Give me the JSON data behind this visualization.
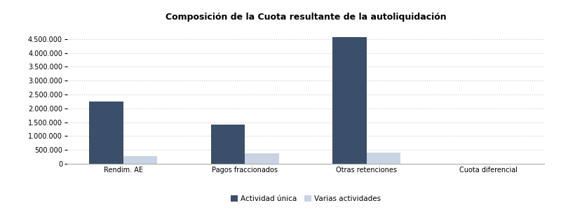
{
  "title": "Composición de la Cuota resultante de la autoliquidación",
  "categories": [
    "Rendim. AE",
    "Pagos fraccionados",
    "Otras retenciones",
    "Cuota diferencial"
  ],
  "actividad_unica": [
    2250000,
    1420000,
    4580000,
    0
  ],
  "varias_actividades": [
    290000,
    370000,
    415000,
    0
  ],
  "color_unica": "#3b4f6b",
  "color_varias": "#c8d4e3",
  "ylim": [
    0,
    5000000
  ],
  "yticks": [
    0,
    500000,
    1000000,
    1500000,
    2000000,
    2500000,
    3000000,
    3500000,
    4000000,
    4500000
  ],
  "legend_labels": [
    "Actividad única",
    "Varias actividades"
  ],
  "background_color": "#ffffff",
  "grid_color": "#cccccc",
  "title_fontsize": 9,
  "tick_fontsize": 7,
  "legend_fontsize": 7.5
}
